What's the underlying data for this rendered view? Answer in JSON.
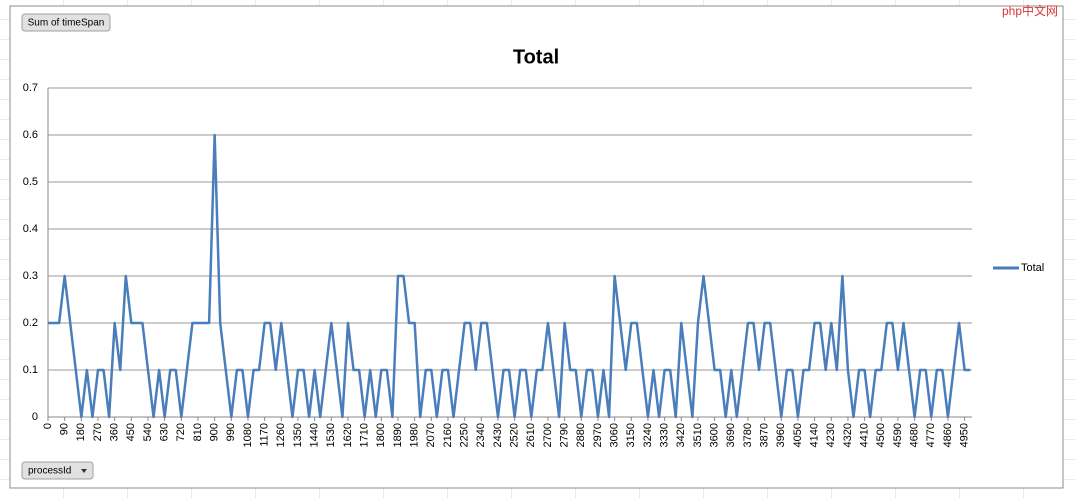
{
  "chart_data": {
    "type": "line",
    "title": "Total",
    "watermark": "php中文网",
    "field_button": "Sum of timeSpan",
    "axis_button": "processId",
    "x": [
      0,
      30,
      60,
      90,
      120,
      150,
      180,
      210,
      240,
      270,
      300,
      330,
      360,
      390,
      420,
      450,
      480,
      510,
      540,
      570,
      600,
      630,
      660,
      690,
      720,
      750,
      780,
      810,
      840,
      870,
      900,
      930,
      960,
      990,
      1020,
      1050,
      1080,
      1110,
      1140,
      1170,
      1200,
      1230,
      1260,
      1290,
      1320,
      1350,
      1380,
      1410,
      1440,
      1470,
      1500,
      1530,
      1560,
      1590,
      1620,
      1650,
      1680,
      1710,
      1740,
      1770,
      1800,
      1830,
      1860,
      1890,
      1920,
      1950,
      1980,
      2010,
      2040,
      2070,
      2100,
      2130,
      2160,
      2190,
      2220,
      2250,
      2280,
      2310,
      2340,
      2370,
      2400,
      2430,
      2460,
      2490,
      2520,
      2550,
      2580,
      2610,
      2640,
      2670,
      2700,
      2730,
      2760,
      2790,
      2820,
      2850,
      2880,
      2910,
      2940,
      2970,
      3000,
      3030,
      3060,
      3090,
      3120,
      3150,
      3180,
      3210,
      3240,
      3270,
      3300,
      3330,
      3360,
      3390,
      3420,
      3450,
      3480,
      3510,
      3540,
      3570,
      3600,
      3630,
      3660,
      3690,
      3720,
      3750,
      3780,
      3810,
      3840,
      3870,
      3900,
      3930,
      3960,
      3990,
      4020,
      4050,
      4080,
      4110,
      4140,
      4170,
      4200,
      4230,
      4260,
      4290,
      4320,
      4350,
      4380,
      4410,
      4440,
      4470,
      4500,
      4530,
      4560,
      4590,
      4620,
      4650,
      4680,
      4710,
      4740,
      4770,
      4800,
      4830,
      4860,
      4890,
      4920,
      4950,
      4980
    ],
    "series": [
      {
        "name": "Total",
        "color": "#4a7ebb",
        "values": [
          0.2,
          0.2,
          0.2,
          0.3,
          0.2,
          0.1,
          0,
          0.1,
          0,
          0.1,
          0.1,
          0,
          0.2,
          0.1,
          0.3,
          0.2,
          0.2,
          0.2,
          0.1,
          0,
          0.1,
          0,
          0.1,
          0.1,
          0,
          0.1,
          0.2,
          0.2,
          0.2,
          0.2,
          0.6,
          0.2,
          0.1,
          0,
          0.1,
          0.1,
          0,
          0.1,
          0.1,
          0.2,
          0.2,
          0.1,
          0.2,
          0.1,
          0,
          0.1,
          0.1,
          0,
          0.1,
          0,
          0.1,
          0.2,
          0.1,
          0,
          0.2,
          0.1,
          0.1,
          0,
          0.1,
          0,
          0.1,
          0.1,
          0,
          0.3,
          0.3,
          0.2,
          0.2,
          0,
          0.1,
          0.1,
          0,
          0.1,
          0.1,
          0,
          0.1,
          0.2,
          0.2,
          0.1,
          0.2,
          0.2,
          0.1,
          0,
          0.1,
          0.1,
          0,
          0.1,
          0.1,
          0,
          0.1,
          0.1,
          0.2,
          0.1,
          0,
          0.2,
          0.1,
          0.1,
          0,
          0.1,
          0.1,
          0,
          0.1,
          0,
          0.3,
          0.2,
          0.1,
          0.2,
          0.2,
          0.1,
          0,
          0.1,
          0,
          0.1,
          0.1,
          0,
          0.2,
          0.1,
          0,
          0.2,
          0.3,
          0.2,
          0.1,
          0.1,
          0,
          0.1,
          0,
          0.1,
          0.2,
          0.2,
          0.1,
          0.2,
          0.2,
          0.1,
          0,
          0.1,
          0.1,
          0,
          0.1,
          0.1,
          0.2,
          0.2,
          0.1,
          0.2,
          0.1,
          0.3,
          0.1,
          0,
          0.1,
          0.1,
          0,
          0.1,
          0.1,
          0.2,
          0.2,
          0.1,
          0.2,
          0.1,
          0,
          0.1,
          0.1,
          0,
          0.1,
          0.1,
          0,
          0.1,
          0.2,
          0.1,
          0.1
        ]
      }
    ],
    "xlim": [
      0,
      4990
    ],
    "xticks": [
      0,
      90,
      180,
      270,
      360,
      450,
      540,
      630,
      720,
      810,
      900,
      990,
      1080,
      1170,
      1260,
      1350,
      1440,
      1530,
      1620,
      1710,
      1800,
      1890,
      1980,
      2070,
      2160,
      2250,
      2340,
      2430,
      2520,
      2610,
      2700,
      2790,
      2880,
      2970,
      3060,
      3150,
      3240,
      3330,
      3420,
      3510,
      3600,
      3690,
      3780,
      3870,
      3960,
      4050,
      4140,
      4230,
      4320,
      4410,
      4500,
      4590,
      4680,
      4770,
      4860,
      4950
    ],
    "ylim": [
      0,
      0.7
    ],
    "yticks": [
      0,
      0.1,
      0.2,
      0.3,
      0.4,
      0.5,
      0.6,
      0.7
    ],
    "grid": true,
    "legend": "right"
  }
}
